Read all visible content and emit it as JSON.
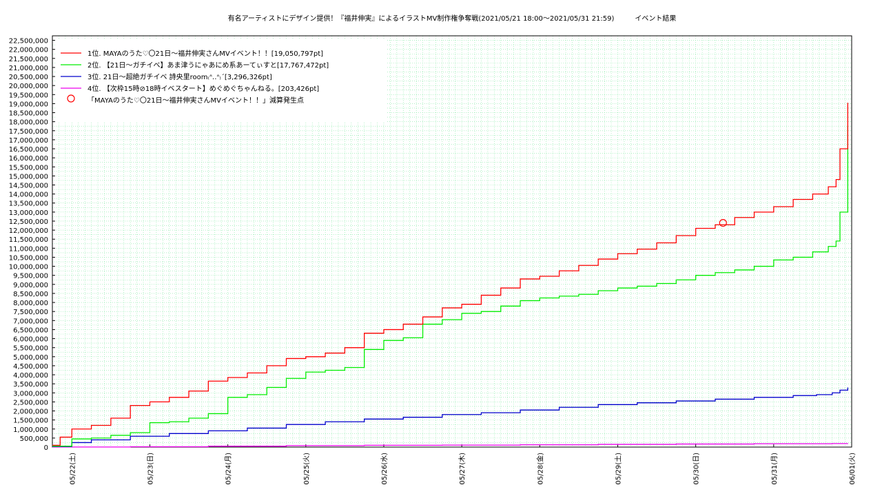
{
  "chart_data": {
    "type": "line",
    "title": "有名アーティストにデザイン提供！『福井伸実』によるイラストMV制作権争奪戦(2021/05/21 18:00～2021/05/31 21:59)　　　イベント結果",
    "ylim": [
      0,
      22750000
    ],
    "y_ticks": [
      "0",
      "500,000",
      "1,000,000",
      "1,500,000",
      "2,000,000",
      "2,500,000",
      "3,000,000",
      "3,500,000",
      "4,000,000",
      "4,500,000",
      "5,000,000",
      "5,500,000",
      "6,000,000",
      "6,500,000",
      "7,000,000",
      "7,500,000",
      "8,000,000",
      "8,500,000",
      "9,000,000",
      "9,500,000",
      "10,000,000",
      "10,500,000",
      "11,000,000",
      "11,500,000",
      "12,000,000",
      "12,500,000",
      "13,000,000",
      "13,500,000",
      "14,000,000",
      "14,500,000",
      "15,000,000",
      "15,500,000",
      "16,000,000",
      "16,500,000",
      "17,000,000",
      "17,500,000",
      "18,000,000",
      "18,500,000",
      "19,000,000",
      "19,500,000",
      "20,000,000",
      "20,500,000",
      "21,000,000",
      "21,500,000",
      "22,000,000",
      "22,500,000"
    ],
    "x_ticks": [
      "05/22(土)",
      "05/23(日)",
      "05/24(月)",
      "05/25(火)",
      "05/26(水)",
      "05/27(木)",
      "05/28(金)",
      "05/29(土)",
      "05/30(日)",
      "05/31(月)",
      "06/01(火)"
    ],
    "x_tick_days": [
      0.25,
      1.25,
      2.25,
      3.25,
      4.25,
      5.25,
      6.25,
      7.25,
      8.25,
      9.25,
      10.25
    ],
    "x_range_days": [
      0,
      10.25
    ],
    "grid": true,
    "legend_position": "top-left",
    "series": [
      {
        "name": "1位. MAYAのうた♡〇21日～福井伸実さんMVイベント！！[19,050,797pt]",
        "color": "#ff0000",
        "x": [
          0,
          0.1,
          0.25,
          0.5,
          0.75,
          1.0,
          1.25,
          1.5,
          1.75,
          2.0,
          2.25,
          2.5,
          2.75,
          3.0,
          3.25,
          3.5,
          3.75,
          4.0,
          4.25,
          4.5,
          4.75,
          5.0,
          5.25,
          5.5,
          5.75,
          6.0,
          6.25,
          6.5,
          6.75,
          7.0,
          7.25,
          7.5,
          7.75,
          8.0,
          8.25,
          8.5,
          8.75,
          9.0,
          9.25,
          9.5,
          9.75,
          9.95,
          10.05,
          10.1,
          10.2
        ],
        "y": [
          100000,
          550000,
          1000000,
          1200000,
          1600000,
          2300000,
          2500000,
          2750000,
          3100000,
          3650000,
          3850000,
          4100000,
          4500000,
          4900000,
          5000000,
          5200000,
          5500000,
          6300000,
          6500000,
          6800000,
          7200000,
          7700000,
          7900000,
          8400000,
          8800000,
          9300000,
          9450000,
          9750000,
          10050000,
          10400000,
          10700000,
          10950000,
          11300000,
          11700000,
          12100000,
          12300000,
          12700000,
          13000000,
          13300000,
          13700000,
          14000000,
          14400000,
          14800000,
          16500000,
          19050797
        ]
      },
      {
        "name": "2位. 【21日～ガチイベ】あま津うにゃあにめ系あーてぃすと[17,767,472pt]",
        "color": "#00ee00",
        "x": [
          0,
          0.25,
          0.5,
          0.75,
          1.0,
          1.25,
          1.5,
          1.75,
          2.0,
          2.25,
          2.5,
          2.75,
          3.0,
          3.25,
          3.5,
          3.75,
          4.0,
          4.25,
          4.5,
          4.75,
          5.0,
          5.25,
          5.5,
          5.75,
          6.0,
          6.25,
          6.5,
          6.75,
          7.0,
          7.25,
          7.5,
          7.75,
          8.0,
          8.25,
          8.5,
          8.75,
          9.0,
          9.25,
          9.5,
          9.75,
          9.95,
          10.05,
          10.1,
          10.2
        ],
        "y": [
          50000,
          450000,
          500000,
          650000,
          800000,
          1350000,
          1400000,
          1600000,
          1850000,
          2750000,
          2900000,
          3300000,
          3800000,
          4150000,
          4250000,
          4400000,
          5400000,
          5900000,
          6050000,
          6800000,
          7050000,
          7400000,
          7500000,
          7800000,
          8100000,
          8250000,
          8350000,
          8450000,
          8650000,
          8800000,
          8900000,
          9050000,
          9250000,
          9500000,
          9650000,
          9800000,
          10000000,
          10350000,
          10500000,
          10800000,
          11100000,
          11400000,
          13000000,
          17767472
        ]
      },
      {
        "name": "3位. 21日～超絶ガチイベ 詩央里room₍ᐢ‥ᐢ₎´[3,296,326pt]",
        "color": "#0000cc",
        "x": [
          0,
          0.25,
          0.5,
          1.0,
          1.5,
          2.0,
          2.5,
          3.0,
          3.5,
          4.0,
          4.5,
          5.0,
          5.5,
          6.0,
          6.5,
          7.0,
          7.5,
          8.0,
          8.5,
          9.0,
          9.5,
          9.8,
          10.0,
          10.1,
          10.2
        ],
        "y": [
          30000,
          250000,
          400000,
          600000,
          750000,
          900000,
          1050000,
          1250000,
          1400000,
          1550000,
          1650000,
          1800000,
          1900000,
          2050000,
          2200000,
          2350000,
          2450000,
          2550000,
          2650000,
          2750000,
          2850000,
          2900000,
          3000000,
          3150000,
          3296326
        ]
      },
      {
        "name": "4位. 【次枠15時⊘18時イベスタート】めぐめぐちゃんねる。[203,426pt]",
        "color": "#ee00ee",
        "x": [
          0,
          1.0,
          2.0,
          3.0,
          4.0,
          5.0,
          6.0,
          7.0,
          8.0,
          9.0,
          10.0,
          10.2
        ],
        "y": [
          5000,
          20000,
          50000,
          80000,
          100000,
          110000,
          130000,
          150000,
          170000,
          185000,
          195000,
          203426
        ]
      }
    ],
    "annotation": {
      "label": "「MAYAのうた♡〇21日～福井伸実さんMVイベント！！」減算発生点",
      "x": 8.6,
      "y": 12400000,
      "color": "#ff0000"
    }
  }
}
